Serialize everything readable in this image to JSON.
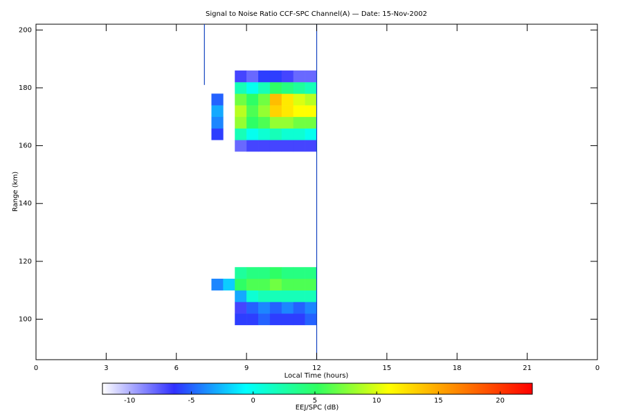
{
  "chart_data": {
    "type": "heatmap",
    "title": "Signal to Noise Ratio CCF-SPC Channel(A) — Date: 15-Nov-2002",
    "x_label": "Local Time (hours)",
    "y_label": "Range (km)",
    "colorbar_label": "EEJ/SPC (dB)",
    "xlim": [
      0,
      24
    ],
    "xticks": [
      0,
      3,
      6,
      9,
      12,
      15,
      18,
      21,
      {
        "value": 24,
        "label": "0"
      }
    ],
    "ylim": [
      86,
      202
    ],
    "yticks": [
      100,
      120,
      140,
      160,
      180,
      200
    ],
    "x_bins": [
      7.5,
      8,
      8.5,
      9,
      9.5,
      10,
      10.5,
      11,
      11.5,
      12
    ],
    "y_bins": [
      98,
      102,
      106,
      110,
      114,
      118,
      122,
      126,
      130,
      134,
      138,
      142,
      146,
      150,
      154,
      158,
      162,
      166,
      170,
      174,
      178,
      182,
      186
    ],
    "z": [
      [
        null,
        null,
        -6,
        -6,
        -5,
        -6,
        -6,
        -6,
        -5
      ],
      [
        null,
        null,
        -7,
        -5,
        -4,
        -5,
        -4,
        -5,
        -4
      ],
      [
        null,
        null,
        -3,
        1,
        2,
        2,
        2,
        2,
        2
      ],
      [
        -4,
        -2,
        5,
        6,
        6,
        7,
        6,
        6,
        6
      ],
      [
        null,
        null,
        3,
        4,
        4,
        5,
        4,
        4,
        4
      ],
      [
        null,
        null,
        null,
        null,
        null,
        null,
        null,
        null,
        null
      ],
      [
        null,
        null,
        null,
        null,
        null,
        null,
        null,
        null,
        null
      ],
      [
        null,
        null,
        null,
        null,
        null,
        null,
        null,
        null,
        null
      ],
      [
        null,
        null,
        null,
        null,
        null,
        null,
        null,
        null,
        null
      ],
      [
        null,
        null,
        null,
        null,
        null,
        null,
        null,
        null,
        null
      ],
      [
        null,
        null,
        null,
        null,
        null,
        null,
        null,
        null,
        null
      ],
      [
        null,
        null,
        null,
        null,
        null,
        null,
        null,
        null,
        null
      ],
      [
        null,
        null,
        null,
        null,
        null,
        null,
        null,
        null,
        null
      ],
      [
        null,
        null,
        null,
        null,
        null,
        null,
        null,
        null,
        null
      ],
      [
        null,
        null,
        null,
        null,
        null,
        null,
        null,
        null,
        null
      ],
      [
        null,
        null,
        -8,
        -7,
        -7,
        -7,
        -7,
        -7,
        -7
      ],
      [
        -6,
        null,
        2,
        0,
        1,
        2,
        1,
        1,
        0
      ],
      [
        -4,
        null,
        8,
        5,
        6,
        8,
        8,
        7,
        7
      ],
      [
        -3,
        null,
        9,
        6,
        8,
        13,
        12,
        11,
        11
      ],
      [
        -5,
        null,
        7,
        5,
        7,
        14,
        12,
        10,
        9
      ],
      [
        null,
        null,
        2,
        0,
        2,
        5,
        4,
        3,
        2
      ],
      [
        null,
        null,
        -7,
        -8,
        -6,
        -6,
        -7,
        -8,
        -8
      ]
    ],
    "zlim": [
      -12.2,
      22.6
    ],
    "cticks": [
      -10,
      -5,
      0,
      5,
      10,
      15,
      20
    ],
    "colorscale": [
      "#ffffff",
      "#3030ff",
      "#00ffff",
      "#30ff60",
      "#ffff00",
      "#ff8000",
      "#ff0000"
    ],
    "vlines": [
      {
        "x": 7.2,
        "range": [
          181,
          202
        ]
      },
      {
        "x": 12,
        "range": [
          86,
          202
        ]
      }
    ],
    "vline_color": "#1040c0"
  }
}
